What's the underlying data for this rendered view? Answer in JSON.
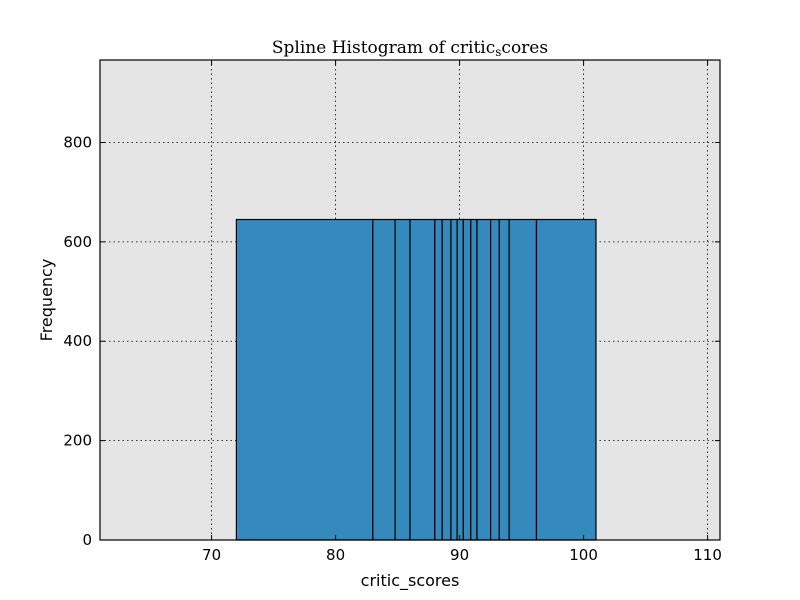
{
  "chart_data": {
    "type": "bar",
    "title_main": "Spline Histogram of critic",
    "title_sub": "s",
    "title_tail": "cores",
    "xlabel": "critic_scores",
    "ylabel": "Frequency",
    "xlim": [
      61,
      111
    ],
    "ylim": [
      0,
      966
    ],
    "xticks": [
      70,
      80,
      90,
      100,
      110
    ],
    "yticks": [
      0,
      200,
      400,
      600,
      800
    ],
    "grid": true,
    "bin_edges": [
      72,
      83,
      84.8,
      86,
      88,
      88.6,
      89.3,
      89.8,
      90.3,
      90.9,
      91.4,
      92.5,
      93.2,
      94,
      96.2,
      101
    ],
    "frequency": 645,
    "colors": {
      "bar_fill": "#348abd",
      "bar_edge": "#000000",
      "plot_background": "#e5e5e5",
      "grid": "#000000"
    }
  }
}
